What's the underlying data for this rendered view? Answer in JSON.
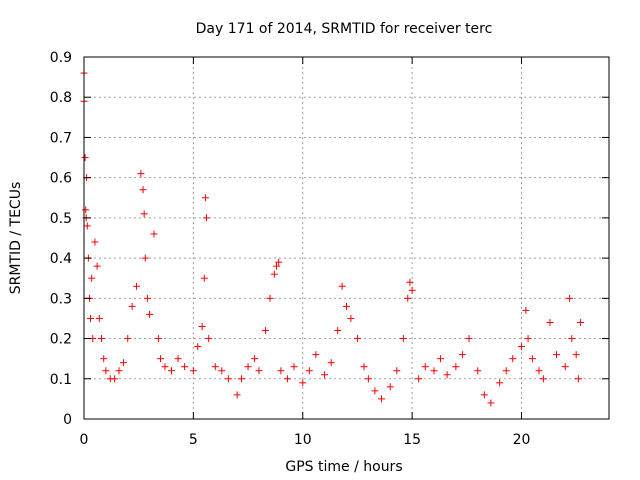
{
  "chart_data": {
    "type": "scatter",
    "title": "Day 171 of 2014, SRMTID for receiver terc",
    "xlabel": "GPS time / hours",
    "ylabel": "SRMTID / TECUs",
    "xlim": [
      0,
      24
    ],
    "ylim": [
      0,
      0.9
    ],
    "xticks": [
      0,
      5,
      10,
      15,
      20
    ],
    "xtick_labels": [
      "0",
      "5",
      "10",
      "15",
      "20"
    ],
    "yticks": [
      0,
      0.1,
      0.2,
      0.3,
      0.4,
      0.5,
      0.6,
      0.7,
      0.8,
      0.9
    ],
    "ytick_labels": [
      "0",
      "0.1",
      "0.2",
      "0.3",
      "0.4",
      "0.5",
      "0.6",
      "0.7",
      "0.8",
      "0.9"
    ],
    "grid": true,
    "marker": "+",
    "color": "#ff0000",
    "series": [
      {
        "name": "SRMTID",
        "x": [
          0.0,
          0.0,
          0.05,
          0.08,
          0.1,
          0.12,
          0.15,
          0.2,
          0.25,
          0.3,
          0.35,
          0.4,
          0.5,
          0.6,
          0.7,
          0.8,
          0.9,
          1.0,
          1.2,
          1.4,
          1.6,
          1.8,
          2.0,
          2.2,
          2.4,
          2.6,
          2.7,
          2.75,
          2.8,
          2.9,
          3.0,
          3.2,
          3.4,
          3.5,
          3.7,
          4.0,
          4.3,
          4.6,
          5.0,
          5.2,
          5.4,
          5.5,
          5.55,
          5.6,
          5.7,
          6.0,
          6.3,
          6.6,
          7.0,
          7.2,
          7.5,
          7.8,
          8.0,
          8.3,
          8.5,
          8.7,
          8.8,
          8.9,
          9.0,
          9.3,
          9.6,
          10.0,
          10.3,
          10.6,
          11.0,
          11.3,
          11.6,
          11.8,
          12.0,
          12.2,
          12.5,
          12.8,
          13.0,
          13.3,
          13.6,
          14.0,
          14.3,
          14.6,
          14.8,
          14.9,
          15.0,
          15.3,
          15.6,
          16.0,
          16.3,
          16.6,
          17.0,
          17.3,
          17.6,
          18.0,
          18.3,
          18.6,
          19.0,
          19.3,
          19.6,
          20.0,
          20.2,
          20.3,
          20.5,
          20.8,
          21.0,
          21.3,
          21.6,
          22.0,
          22.2,
          22.3,
          22.5,
          22.6,
          22.7
        ],
        "y": [
          0.86,
          0.79,
          0.65,
          0.52,
          0.5,
          0.6,
          0.48,
          0.4,
          0.3,
          0.25,
          0.35,
          0.2,
          0.44,
          0.38,
          0.25,
          0.2,
          0.15,
          0.12,
          0.1,
          0.1,
          0.12,
          0.14,
          0.2,
          0.28,
          0.33,
          0.61,
          0.57,
          0.51,
          0.4,
          0.3,
          0.26,
          0.46,
          0.2,
          0.15,
          0.13,
          0.12,
          0.15,
          0.13,
          0.12,
          0.18,
          0.23,
          0.35,
          0.55,
          0.5,
          0.2,
          0.13,
          0.12,
          0.1,
          0.06,
          0.1,
          0.13,
          0.15,
          0.12,
          0.22,
          0.3,
          0.36,
          0.38,
          0.39,
          0.12,
          0.1,
          0.13,
          0.09,
          0.12,
          0.16,
          0.11,
          0.14,
          0.22,
          0.33,
          0.28,
          0.25,
          0.2,
          0.13,
          0.1,
          0.07,
          0.05,
          0.08,
          0.12,
          0.2,
          0.3,
          0.34,
          0.32,
          0.1,
          0.13,
          0.12,
          0.15,
          0.11,
          0.13,
          0.16,
          0.2,
          0.12,
          0.06,
          0.04,
          0.09,
          0.12,
          0.15,
          0.18,
          0.27,
          0.2,
          0.15,
          0.12,
          0.1,
          0.24,
          0.16,
          0.13,
          0.3,
          0.2,
          0.16,
          0.1,
          0.24
        ]
      }
    ]
  }
}
